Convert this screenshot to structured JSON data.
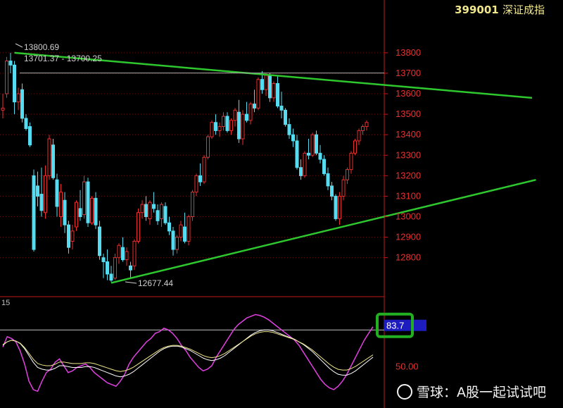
{
  "header": {
    "code": "399001",
    "name": "深证成指"
  },
  "watermark": {
    "text": "雪球：A股一起试试吧"
  },
  "indicator": {
    "label": "15",
    "current_value": "83.7",
    "axis_label": "50.00"
  },
  "colors": {
    "up": "#e8302e",
    "down": "#55dcf0",
    "trend": "#2ec82e",
    "k": "#e040e0",
    "d": "#ffffff",
    "j": "#f0e68c",
    "axis": "#c41a1a"
  },
  "chart_data": {
    "type": "candlestick",
    "ylim": [
      12620,
      13920
    ],
    "yticks": [
      12800,
      12900,
      13000,
      13100,
      13200,
      13300,
      13400,
      13500,
      13600,
      13700,
      13800
    ],
    "annotations": {
      "high_label": "13800.69",
      "range_label": "13701.37 - 13700.25",
      "low_label": "12677.44",
      "reference_level": 13701
    },
    "trendlines": [
      {
        "name": "upper",
        "from": [
          3,
          13800
        ],
        "to": [
          124,
          13580
        ]
      },
      {
        "name": "lower",
        "from": [
          28,
          12677
        ],
        "to": [
          125,
          13180
        ]
      }
    ],
    "candles": [
      [
        13520,
        13600,
        13480,
        13530
      ],
      [
        13600,
        13780,
        13580,
        13760
      ],
      [
        13760,
        13800,
        13700,
        13740
      ],
      [
        13740,
        13760,
        13500,
        13560
      ],
      [
        13560,
        13630,
        13520,
        13600
      ],
      [
        13620,
        13650,
        13460,
        13480
      ],
      [
        13480,
        13500,
        13420,
        13430
      ],
      [
        13440,
        13460,
        13340,
        13350
      ],
      [
        13200,
        13230,
        12830,
        12840
      ],
      [
        13150,
        13220,
        13050,
        13100
      ],
      [
        13110,
        13240,
        13000,
        13030
      ],
      [
        13020,
        13250,
        12990,
        13200
      ],
      [
        13200,
        13400,
        13180,
        13380
      ],
      [
        13350,
        13380,
        13180,
        13190
      ],
      [
        13180,
        13210,
        13000,
        13050
      ],
      [
        13000,
        13160,
        12950,
        13120
      ],
      [
        13080,
        13120,
        12920,
        12960
      ],
      [
        12960,
        12980,
        12820,
        12850
      ],
      [
        12880,
        12960,
        12840,
        12930
      ],
      [
        12950,
        13080,
        12930,
        13070
      ],
      [
        13040,
        13130,
        12980,
        13000
      ],
      [
        13010,
        13200,
        12990,
        13170
      ],
      [
        13170,
        13190,
        12950,
        12970
      ],
      [
        12970,
        13100,
        12960,
        13090
      ],
      [
        13090,
        13120,
        12940,
        12960
      ],
      [
        12950,
        12980,
        12790,
        12810
      ],
      [
        12800,
        12820,
        12700,
        12780
      ],
      [
        12780,
        12840,
        12690,
        12720
      ],
      [
        12720,
        12760,
        12680,
        12690
      ],
      [
        12700,
        12820,
        12690,
        12800
      ],
      [
        12800,
        12870,
        12770,
        12860
      ],
      [
        12850,
        12900,
        12780,
        12790
      ],
      [
        12790,
        12850,
        12760,
        12830
      ],
      [
        12760,
        12780,
        12700,
        12740
      ],
      [
        12760,
        12890,
        12740,
        12880
      ],
      [
        12880,
        13040,
        12870,
        13020
      ],
      [
        13020,
        13080,
        12990,
        13060
      ],
      [
        13060,
        13100,
        12980,
        13000
      ],
      [
        12990,
        13080,
        12960,
        13070
      ],
      [
        13060,
        13120,
        13020,
        13040
      ],
      [
        13030,
        13060,
        12960,
        12980
      ],
      [
        12990,
        13070,
        12950,
        13060
      ],
      [
        13050,
        13070,
        12960,
        12970
      ],
      [
        12970,
        13000,
        12910,
        12930
      ],
      [
        12930,
        12950,
        12810,
        12840
      ],
      [
        12840,
        12910,
        12820,
        12900
      ],
      [
        12900,
        12980,
        12880,
        12960
      ],
      [
        12950,
        13020,
        12870,
        12880
      ],
      [
        12880,
        13010,
        12860,
        13000
      ],
      [
        13000,
        13130,
        12980,
        13120
      ],
      [
        13120,
        13210,
        13100,
        13200
      ],
      [
        13200,
        13260,
        13150,
        13170
      ],
      [
        13170,
        13300,
        13160,
        13290
      ],
      [
        13290,
        13400,
        13280,
        13390
      ],
      [
        13390,
        13470,
        13380,
        13460
      ],
      [
        13460,
        13500,
        13400,
        13420
      ],
      [
        13420,
        13460,
        13390,
        13440
      ],
      [
        13440,
        13510,
        13420,
        13490
      ],
      [
        13490,
        13510,
        13410,
        13420
      ],
      [
        13420,
        13480,
        13400,
        13470
      ],
      [
        13470,
        13530,
        13440,
        13520
      ],
      [
        13510,
        13570,
        13360,
        13380
      ],
      [
        13380,
        13520,
        13350,
        13500
      ],
      [
        13500,
        13560,
        13460,
        13470
      ],
      [
        13470,
        13560,
        13450,
        13550
      ],
      [
        13550,
        13620,
        13510,
        13530
      ],
      [
        13530,
        13680,
        13520,
        13670
      ],
      [
        13670,
        13710,
        13600,
        13620
      ],
      [
        13620,
        13700,
        13590,
        13690
      ],
      [
        13690,
        13700,
        13560,
        13580
      ],
      [
        13580,
        13660,
        13560,
        13650
      ],
      [
        13650,
        13690,
        13530,
        13540
      ],
      [
        13540,
        13610,
        13480,
        13520
      ],
      [
        13520,
        13530,
        13440,
        13450
      ],
      [
        13450,
        13480,
        13380,
        13400
      ],
      [
        13400,
        13430,
        13340,
        13370
      ],
      [
        13370,
        13400,
        13230,
        13240
      ],
      [
        13240,
        13280,
        13180,
        13200
      ],
      [
        13200,
        13320,
        13190,
        13310
      ],
      [
        13310,
        13380,
        13280,
        13300
      ],
      [
        13300,
        13410,
        13290,
        13400
      ],
      [
        13400,
        13420,
        13300,
        13310
      ],
      [
        13310,
        13350,
        13260,
        13280
      ],
      [
        13280,
        13300,
        13200,
        13210
      ],
      [
        13210,
        13240,
        13130,
        13150
      ],
      [
        13150,
        13170,
        13080,
        13100
      ],
      [
        13100,
        13110,
        12980,
        12990
      ],
      [
        12990,
        13120,
        12960,
        13100
      ],
      [
        13100,
        13200,
        13080,
        13180
      ],
      [
        13180,
        13240,
        13160,
        13230
      ],
      [
        13230,
        13320,
        13210,
        13310
      ],
      [
        13310,
        13380,
        13300,
        13370
      ],
      [
        13370,
        13430,
        13350,
        13420
      ],
      [
        13420,
        13450,
        13400,
        13440
      ],
      [
        13440,
        13470,
        13420,
        13460
      ]
    ],
    "oscillator": {
      "label": "15",
      "ylim": [
        0,
        100
      ],
      "k": [
        60,
        72,
        70,
        66,
        55,
        40,
        20,
        10,
        8,
        20,
        30,
        34,
        42,
        46,
        38,
        30,
        32,
        36,
        38,
        40,
        36,
        30,
        26,
        22,
        18,
        16,
        14,
        20,
        28,
        40,
        48,
        54,
        60,
        66,
        70,
        76,
        78,
        82,
        80,
        76,
        70,
        62,
        56,
        48,
        42,
        36,
        32,
        34,
        38,
        48,
        56,
        64,
        72,
        80,
        86,
        90,
        94,
        96,
        98,
        97,
        95,
        92,
        88,
        84,
        80,
        76,
        72,
        68,
        62,
        54,
        46,
        38,
        30,
        22,
        16,
        12,
        10,
        14,
        20,
        28,
        38,
        48,
        58,
        68,
        76,
        83.7
      ],
      "d": [
        62,
        66,
        68,
        67,
        64,
        58,
        50,
        42,
        36,
        34,
        33,
        33,
        35,
        38,
        38,
        37,
        36,
        36,
        36,
        37,
        37,
        36,
        34,
        32,
        30,
        28,
        26,
        25,
        26,
        28,
        31,
        35,
        39,
        43,
        47,
        51,
        55,
        58,
        60,
        61,
        61,
        60,
        58,
        56,
        53,
        50,
        47,
        45,
        44,
        45,
        47,
        50,
        54,
        58,
        62,
        66,
        70,
        74,
        77,
        79,
        80,
        80,
        79,
        77,
        75,
        73,
        71,
        69,
        66,
        63,
        59,
        55,
        50,
        45,
        40,
        35,
        31,
        28,
        27,
        27,
        29,
        32,
        36,
        40,
        44,
        48
      ]
    }
  }
}
